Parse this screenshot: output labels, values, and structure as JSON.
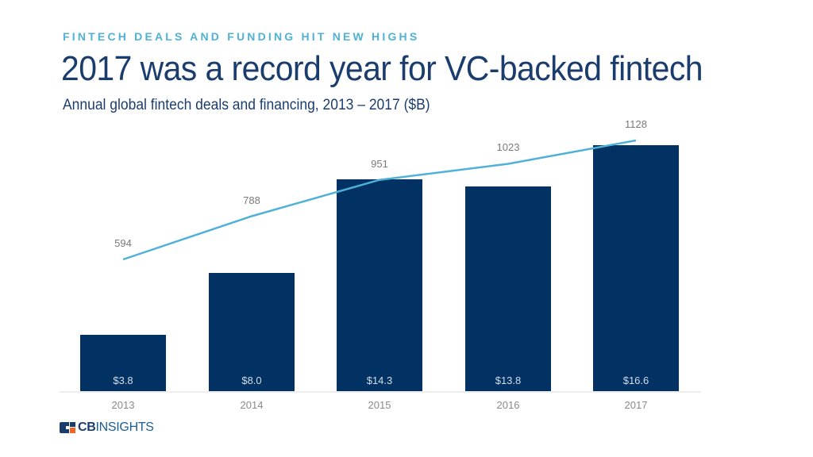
{
  "header": {
    "eyebrow": "FINTECH DEALS AND FUNDING HIT NEW HIGHS",
    "title": "2017 was a record year for VC-backed fintech",
    "subtitle": "Annual global fintech deals and financing, 2013 – 2017 ($B)"
  },
  "colors": {
    "bar": "#013263",
    "line": "#4fb1d6",
    "eyebrow": "#4fb1d6",
    "title": "#1b3d6d"
  },
  "chart_data": {
    "type": "bar",
    "title": "2017 was a record year for VC-backed fintech",
    "subtitle": "Annual global fintech deals and financing, 2013 – 2017 ($B)",
    "categories": [
      "2013",
      "2014",
      "2015",
      "2016",
      "2017"
    ],
    "series": [
      {
        "name": "Financing ($B)",
        "type": "bar",
        "values": [
          3.8,
          8.0,
          14.3,
          13.8,
          16.6
        ],
        "labels": [
          "$3.8",
          "$8.0",
          "$14.3",
          "$13.8",
          "$16.6"
        ]
      },
      {
        "name": "Deals",
        "type": "line",
        "values": [
          594,
          788,
          951,
          1023,
          1128
        ],
        "labels": [
          "594",
          "788",
          "951",
          "1023",
          "1128"
        ]
      }
    ],
    "xlabel": "",
    "ylabel": "",
    "grid": false,
    "legend": "none"
  },
  "footer": {
    "logo_bold": "CB",
    "logo_light": "INSIGHTS"
  }
}
